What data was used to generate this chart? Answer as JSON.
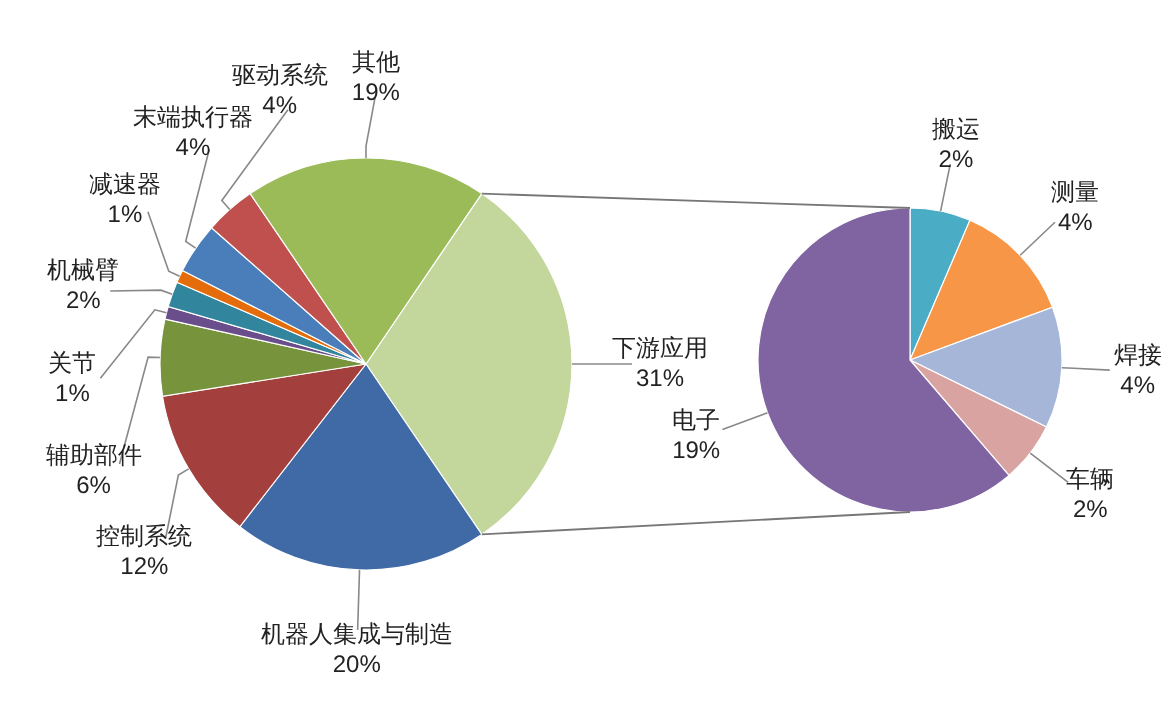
{
  "chart_data": [
    {
      "type": "pie",
      "categories": [
        "下游应用",
        "机器人集成与制造",
        "控制系统",
        "辅助部件",
        "关节",
        "机械臂",
        "减速器",
        "末端执行器",
        "驱动系统",
        "其他"
      ],
      "values": [
        31,
        20,
        12,
        6,
        1,
        2,
        1,
        4,
        4,
        19
      ],
      "colors": [
        "#c3d69b",
        "#3f6aa5",
        "#a33f3c",
        "#77933c",
        "#6a4e8c",
        "#31859c",
        "#e46c0a",
        "#4a7ebb",
        "#c0504d",
        "#9bbb59"
      ],
      "value_labels": [
        "31%",
        "20%",
        "12%",
        "6%",
        "1%",
        "2%",
        "1%",
        "4%",
        "4%",
        "19%"
      ]
    },
    {
      "type": "pie",
      "categories": [
        "搬运",
        "测量",
        "焊接",
        "车辆",
        "电子"
      ],
      "values": [
        2,
        4,
        4,
        2,
        19
      ],
      "colors": [
        "#4bacc6",
        "#f79646",
        "#a5b6d9",
        "#d9a3a1",
        "#8064a2"
      ],
      "value_labels": [
        "2%",
        "4%",
        "4%",
        "2%",
        "19%"
      ]
    }
  ]
}
